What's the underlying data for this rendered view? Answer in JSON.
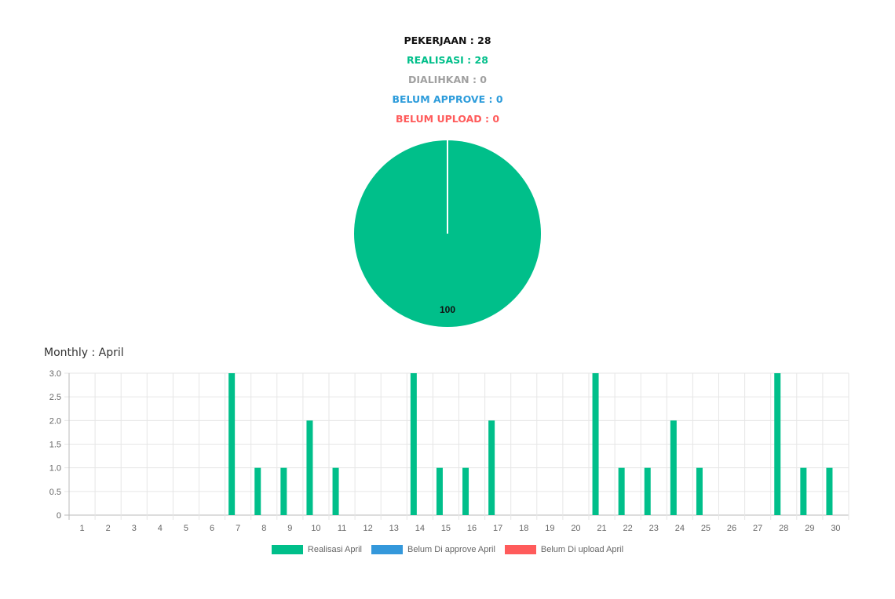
{
  "summary": {
    "pekerjaan": "PEKERJAAN : 28",
    "realisasi": "REALISASI : 28",
    "dialihkan": "DIALIHKAN : 0",
    "belum_approve": "BELUM APPROVE : 0",
    "belum_upload": "BELUM UPLOAD : 0"
  },
  "colors": {
    "pekerjaan": "#111111",
    "realisasi": "#00bf8a",
    "dialihkan": "#a0a0a0",
    "belum_approve": "#2d9cdb",
    "belum_upload": "#ff5b5b"
  },
  "monthly_title": "Monthly : April",
  "legend": [
    {
      "label": "Realisasi April",
      "color": "#00bf8a"
    },
    {
      "label": "Belum Di approve April",
      "color": "#3498db"
    },
    {
      "label": "Belum Di upload April",
      "color": "#ff5b5b"
    }
  ],
  "chart_data": [
    {
      "type": "pie",
      "values": [
        100
      ],
      "labels": [
        "100"
      ],
      "colors": [
        "#00bf8a"
      ]
    },
    {
      "type": "bar",
      "categories": [
        "1",
        "2",
        "3",
        "4",
        "5",
        "6",
        "7",
        "8",
        "9",
        "10",
        "11",
        "12",
        "13",
        "14",
        "15",
        "16",
        "17",
        "18",
        "19",
        "20",
        "21",
        "22",
        "23",
        "24",
        "25",
        "26",
        "27",
        "28",
        "29",
        "30"
      ],
      "series": [
        {
          "name": "Realisasi April",
          "color": "#00bf8a",
          "values": [
            0,
            0,
            0,
            0,
            0,
            0,
            3,
            1,
            1,
            2,
            1,
            0,
            0,
            3,
            1,
            1,
            2,
            0,
            0,
            0,
            3,
            1,
            1,
            2,
            1,
            0,
            0,
            3,
            1,
            1
          ]
        },
        {
          "name": "Belum Di approve April",
          "color": "#3498db",
          "values": [
            0,
            0,
            0,
            0,
            0,
            0,
            0,
            0,
            0,
            0,
            0,
            0,
            0,
            0,
            0,
            0,
            0,
            0,
            0,
            0,
            0,
            0,
            0,
            0,
            0,
            0,
            0,
            0,
            0,
            0
          ]
        },
        {
          "name": "Belum Di upload April",
          "color": "#ff5b5b",
          "values": [
            0,
            0,
            0,
            0,
            0,
            0,
            0,
            0,
            0,
            0,
            0,
            0,
            0,
            0,
            0,
            0,
            0,
            0,
            0,
            0,
            0,
            0,
            0,
            0,
            0,
            0,
            0,
            0,
            0,
            0
          ]
        }
      ],
      "yticks": [
        "0",
        "0.5",
        "1.0",
        "1.5",
        "2.0",
        "2.5",
        "3.0"
      ],
      "ylim": [
        0,
        3
      ],
      "grid": true,
      "legend_position": "bottom"
    }
  ]
}
